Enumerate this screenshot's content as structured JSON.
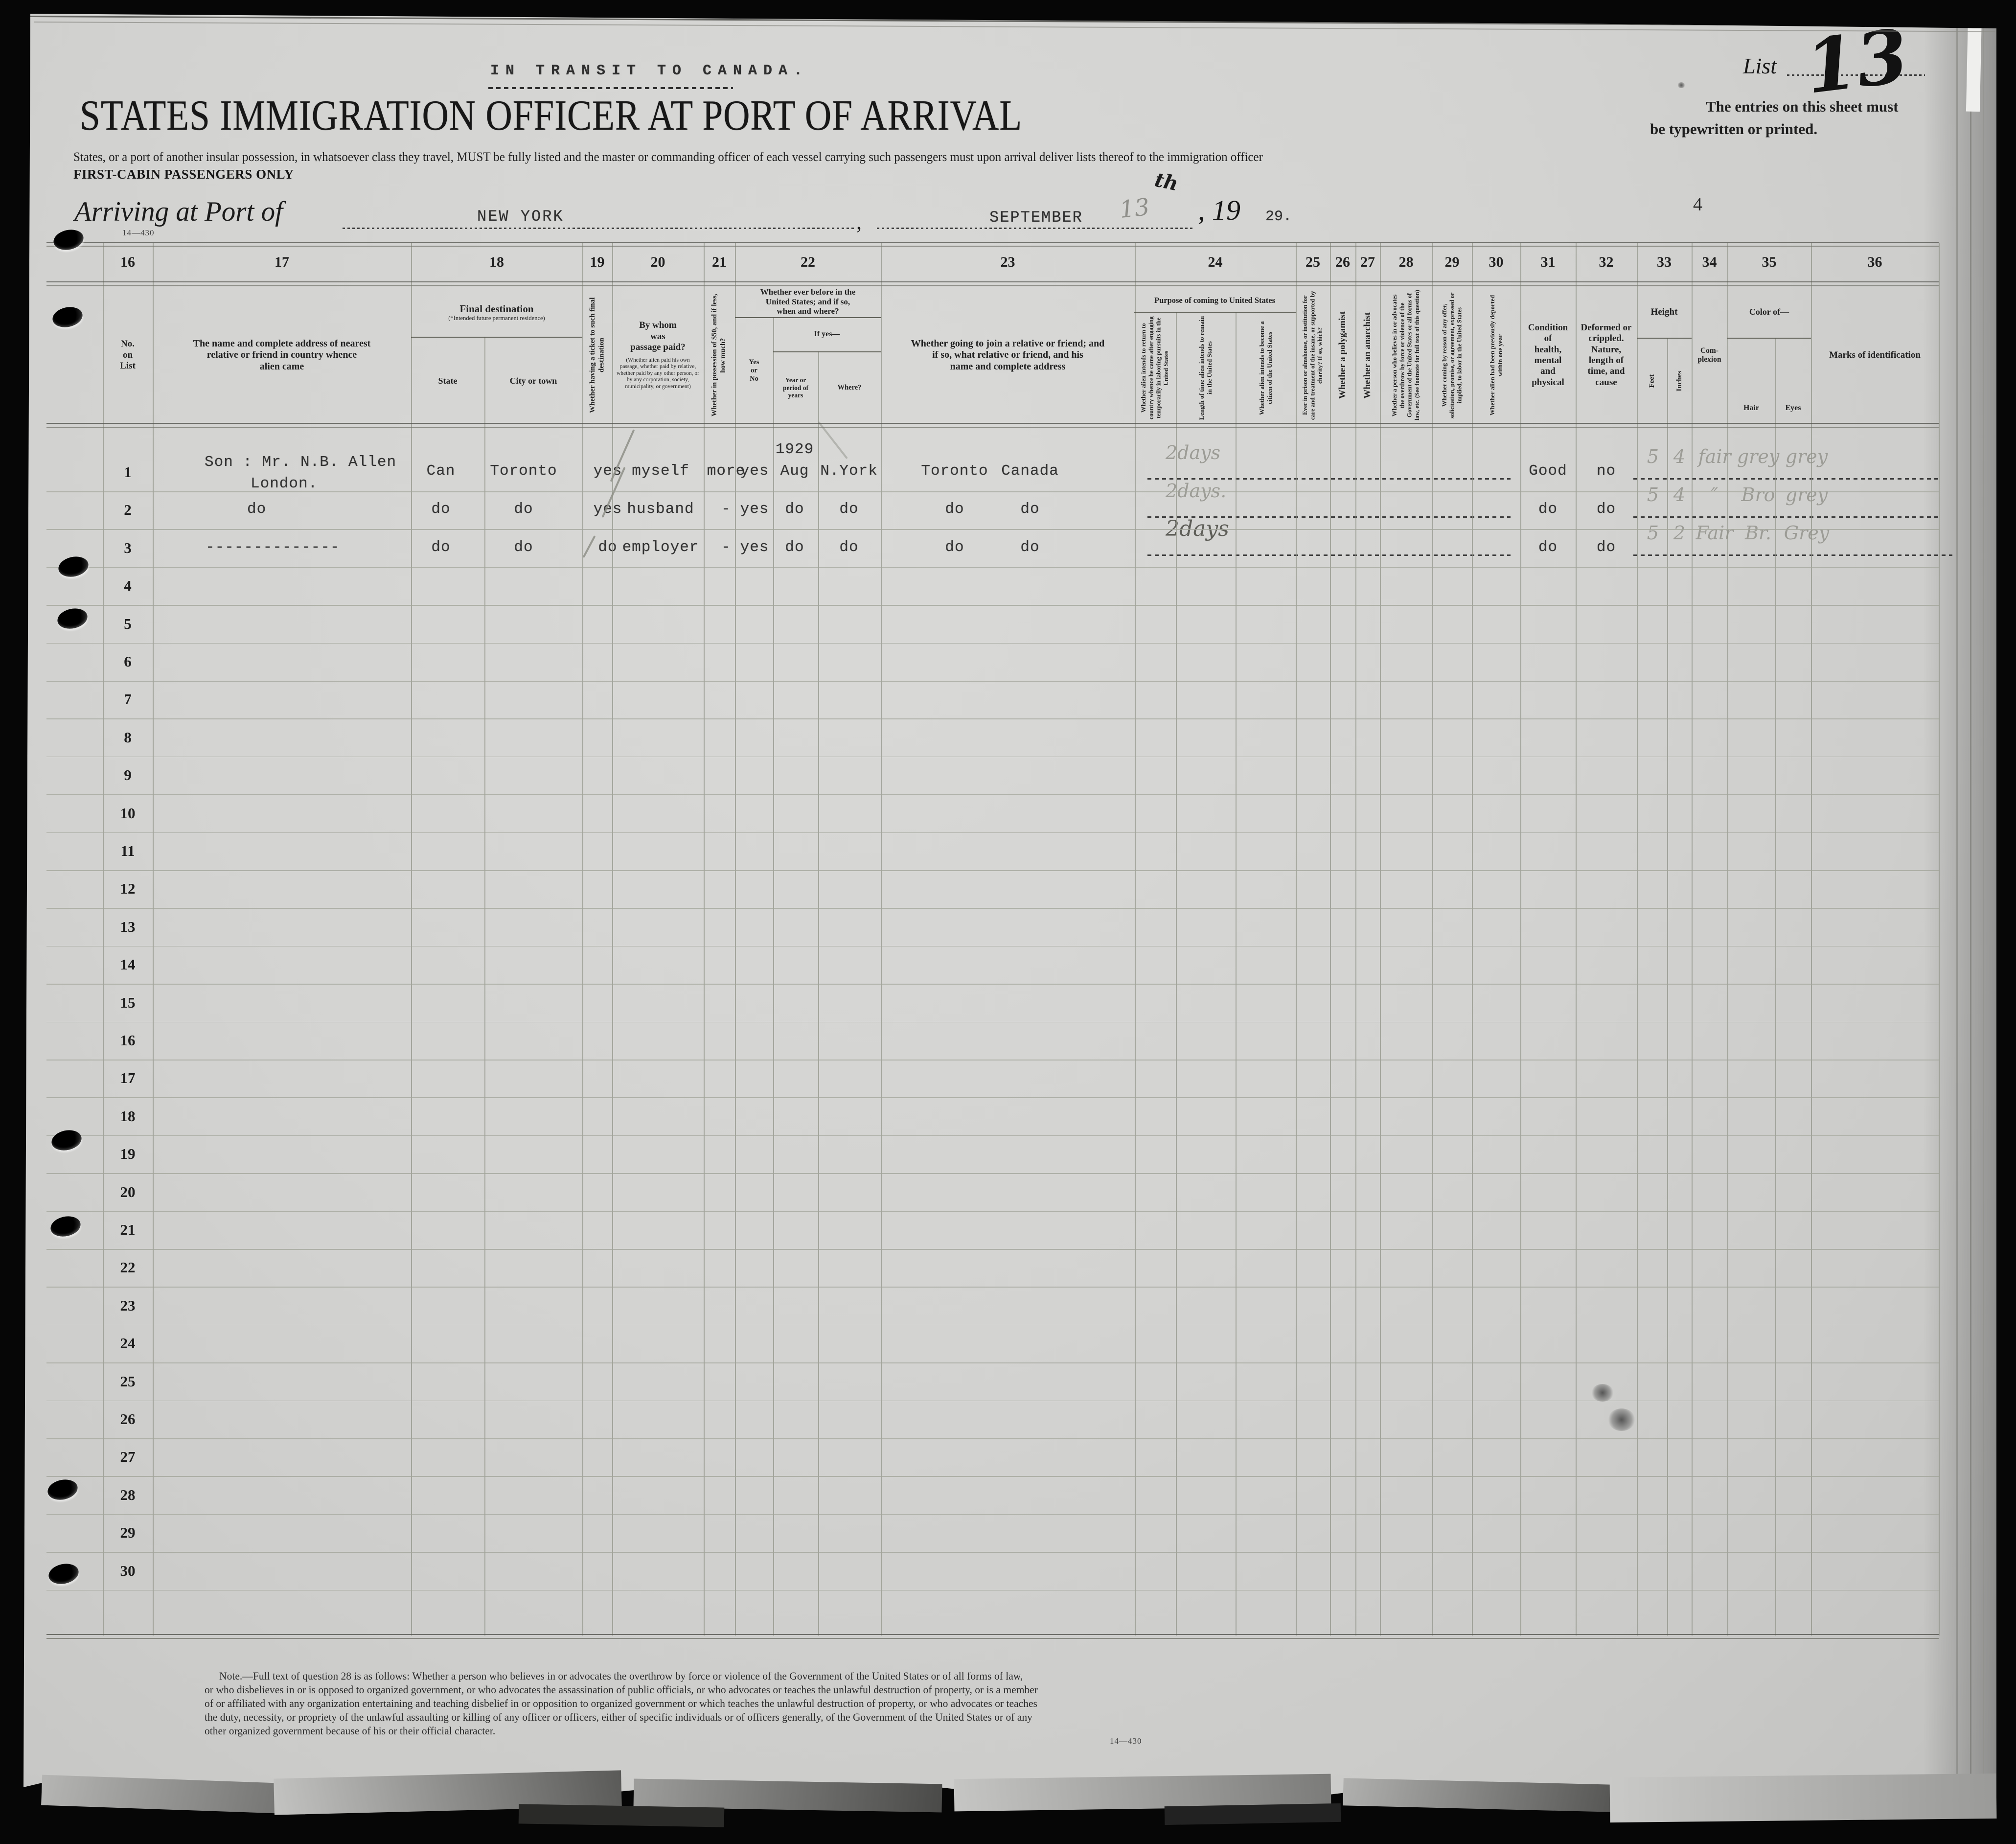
{
  "page": {
    "transit_note": "IN TRANSIT TO CANADA.",
    "title": "STATES IMMIGRATION OFFICER AT PORT OF ARRIVAL",
    "subtitle": "States, or a port of another insular possession, in whatsoever class they travel, MUST be fully listed and the master or commanding officer of each vessel carrying such passengers must upon arrival deliver lists thereof to the immigration officer",
    "first_cabin": "FIRST-CABIN PASSENGERS ONLY",
    "form_number_top": "14—430",
    "list_label": "List",
    "list_number": "13",
    "entries_note_line1": "The entries on this sheet must",
    "entries_note_line2": "be typewritten or printed.",
    "page_number": "4",
    "arriving": {
      "label": "Arriving at Port of",
      "port": "NEW YORK",
      "comma": ",",
      "month": "SEPTEMBER",
      "day": "13",
      "day_suffix": "th",
      "year_printed": ",  19",
      "year_typed": "29."
    }
  },
  "columns": {
    "numbers": [
      "16",
      "17",
      "18",
      "19",
      "20",
      "21",
      "22",
      "23",
      "24",
      "25",
      "26",
      "27",
      "28",
      "29",
      "30",
      "31",
      "32",
      "33",
      "34",
      "35",
      "36"
    ],
    "c16": "No.\non\nList",
    "c17": "The name and complete address of nearest\nrelative or friend in country whence\nalien came",
    "c18_title": "Final destination",
    "c18_sub": "(*Intended future permanent residence)",
    "c18_state": "State",
    "c18_city": "City or town",
    "c19": "Whether having a ticket to such final destination",
    "c20_title": "By whom\nwas\npassage paid?",
    "c20_sub": "(Whether alien paid his own passage, whether paid by relative, whether paid by any other person, or by any corporation, society, municipality, or government)",
    "c21": "Whether in possession of $50, and if less, how much?",
    "c22_title": "Whether ever before in the\nUnited States; and if so,\nwhen and where?",
    "c22_yesno": "Yes\nor\nNo",
    "c22_ifyes": "If yes—",
    "c22_year": "Year or\nperiod of\nyears",
    "c22_where": "Where?",
    "c23": "Whether going to join a relative or friend; and\nif so, what relative or friend, and his\nname and complete address",
    "c24_title": "Purpose of coming to United States",
    "c24_a": "Whether alien intends to return to country whence he came after engaging temporarily in laboring pursuits in the United States",
    "c24_b": "Length of time alien intends to remain in the United States",
    "c24_c": "Whether alien intends to become a citizen of the United States",
    "c25": "Ever in prison or almshouse, or institution for care and treatment of the insane, or supported by charity?  If so, which?",
    "c26": "Whether a polygamist",
    "c27": "Whether an anarchist",
    "c28": "Whether a person who believes in or advocates the overthrow by force or violence of the Government of the United States or all forms of law, etc.  (See footnote for full text of this question)",
    "c29": "Whether coming by reason of any offer, solicitation, promise, or agreement, expressed or implied, to labor in the United States",
    "c30": "Whether alien had been previously deported within one year",
    "c31": "Condition\nof\nhealth,\nmental\nand\nphysical",
    "c32": "Deformed or\ncrippled.\nNature,\nlength of\ntime, and\ncause",
    "c33_title": "Height",
    "c33_feet": "Feet",
    "c33_inches": "Inches",
    "c34": "Com-\nplexion",
    "c35_title": "Color of—",
    "c35_hair": "Hair",
    "c35_eyes": "Eyes",
    "c36": "Marks of identification"
  },
  "grid": {
    "row_numbers": [
      "1",
      "2",
      "3",
      "4",
      "5",
      "6",
      "7",
      "8",
      "9",
      "10",
      "11",
      "12",
      "13",
      "14",
      "15",
      "16",
      "17",
      "18",
      "19",
      "20",
      "21",
      "22",
      "23",
      "24",
      "25",
      "26",
      "27",
      "28",
      "29",
      "30"
    ]
  },
  "entries": [
    {
      "name": "Son : Mr. N.B. Allen",
      "name2": "London.",
      "state": "Can",
      "city": "Toronto",
      "ticket": "yes",
      "paid_by": "myself",
      "money": "more",
      "before": "yes",
      "before_year_note": "1929",
      "before_year": "Aug",
      "before_where": "N.York",
      "join_a": "Toronto",
      "join_b": "Canada",
      "stay": "2days",
      "health": "Good",
      "deformed": "no",
      "feet": "5",
      "inches": "4",
      "complexion": "fair",
      "hair": "grey",
      "eyes": "grey"
    },
    {
      "name": "do",
      "state": "do",
      "city": "do",
      "ticket": "yes",
      "paid_by": "husband",
      "money": "-",
      "before": "yes",
      "before_year": "do",
      "before_where": "do",
      "join_a": "do",
      "join_b": "do",
      "stay": "2days.",
      "health": "do",
      "deformed": "do",
      "feet": "5",
      "inches": "4",
      "complexion": "″",
      "hair": "Bro",
      "eyes": "grey"
    },
    {
      "name": "--------------",
      "state": "do",
      "city": "do",
      "ticket": "do",
      "paid_by": "employer",
      "money": "-",
      "before": "yes",
      "before_year": "do",
      "before_where": "do",
      "join_a": "do",
      "join_b": "do",
      "stay": "2days",
      "health": "do",
      "deformed": "do",
      "feet": "5",
      "inches": "2",
      "complexion": "Fair",
      "hair": "Br.",
      "eyes": "Grey"
    }
  ],
  "footnote": {
    "lines": [
      "Note.—Full text of question 28 is as follows:  Whether a person who believes in or advocates the overthrow by force or violence of the Government of the United States or of all forms of law,",
      "or who disbelieves in or is opposed to organized government, or who advocates the assassination of public officials, or who advocates or teaches the unlawful destruction of property, or is a member",
      "of or affiliated with any organization entertaining and teaching disbelief in or opposition to organized government or which teaches the unlawful destruction of property, or who advocates or teaches",
      "the duty, necessity, or propriety of the unlawful assaulting or killing of any officer or officers, either of specific individuals or of officers generally, of the Government of the United States or of any",
      "other organized government because of his or their official character."
    ],
    "form_number": "14—430"
  }
}
